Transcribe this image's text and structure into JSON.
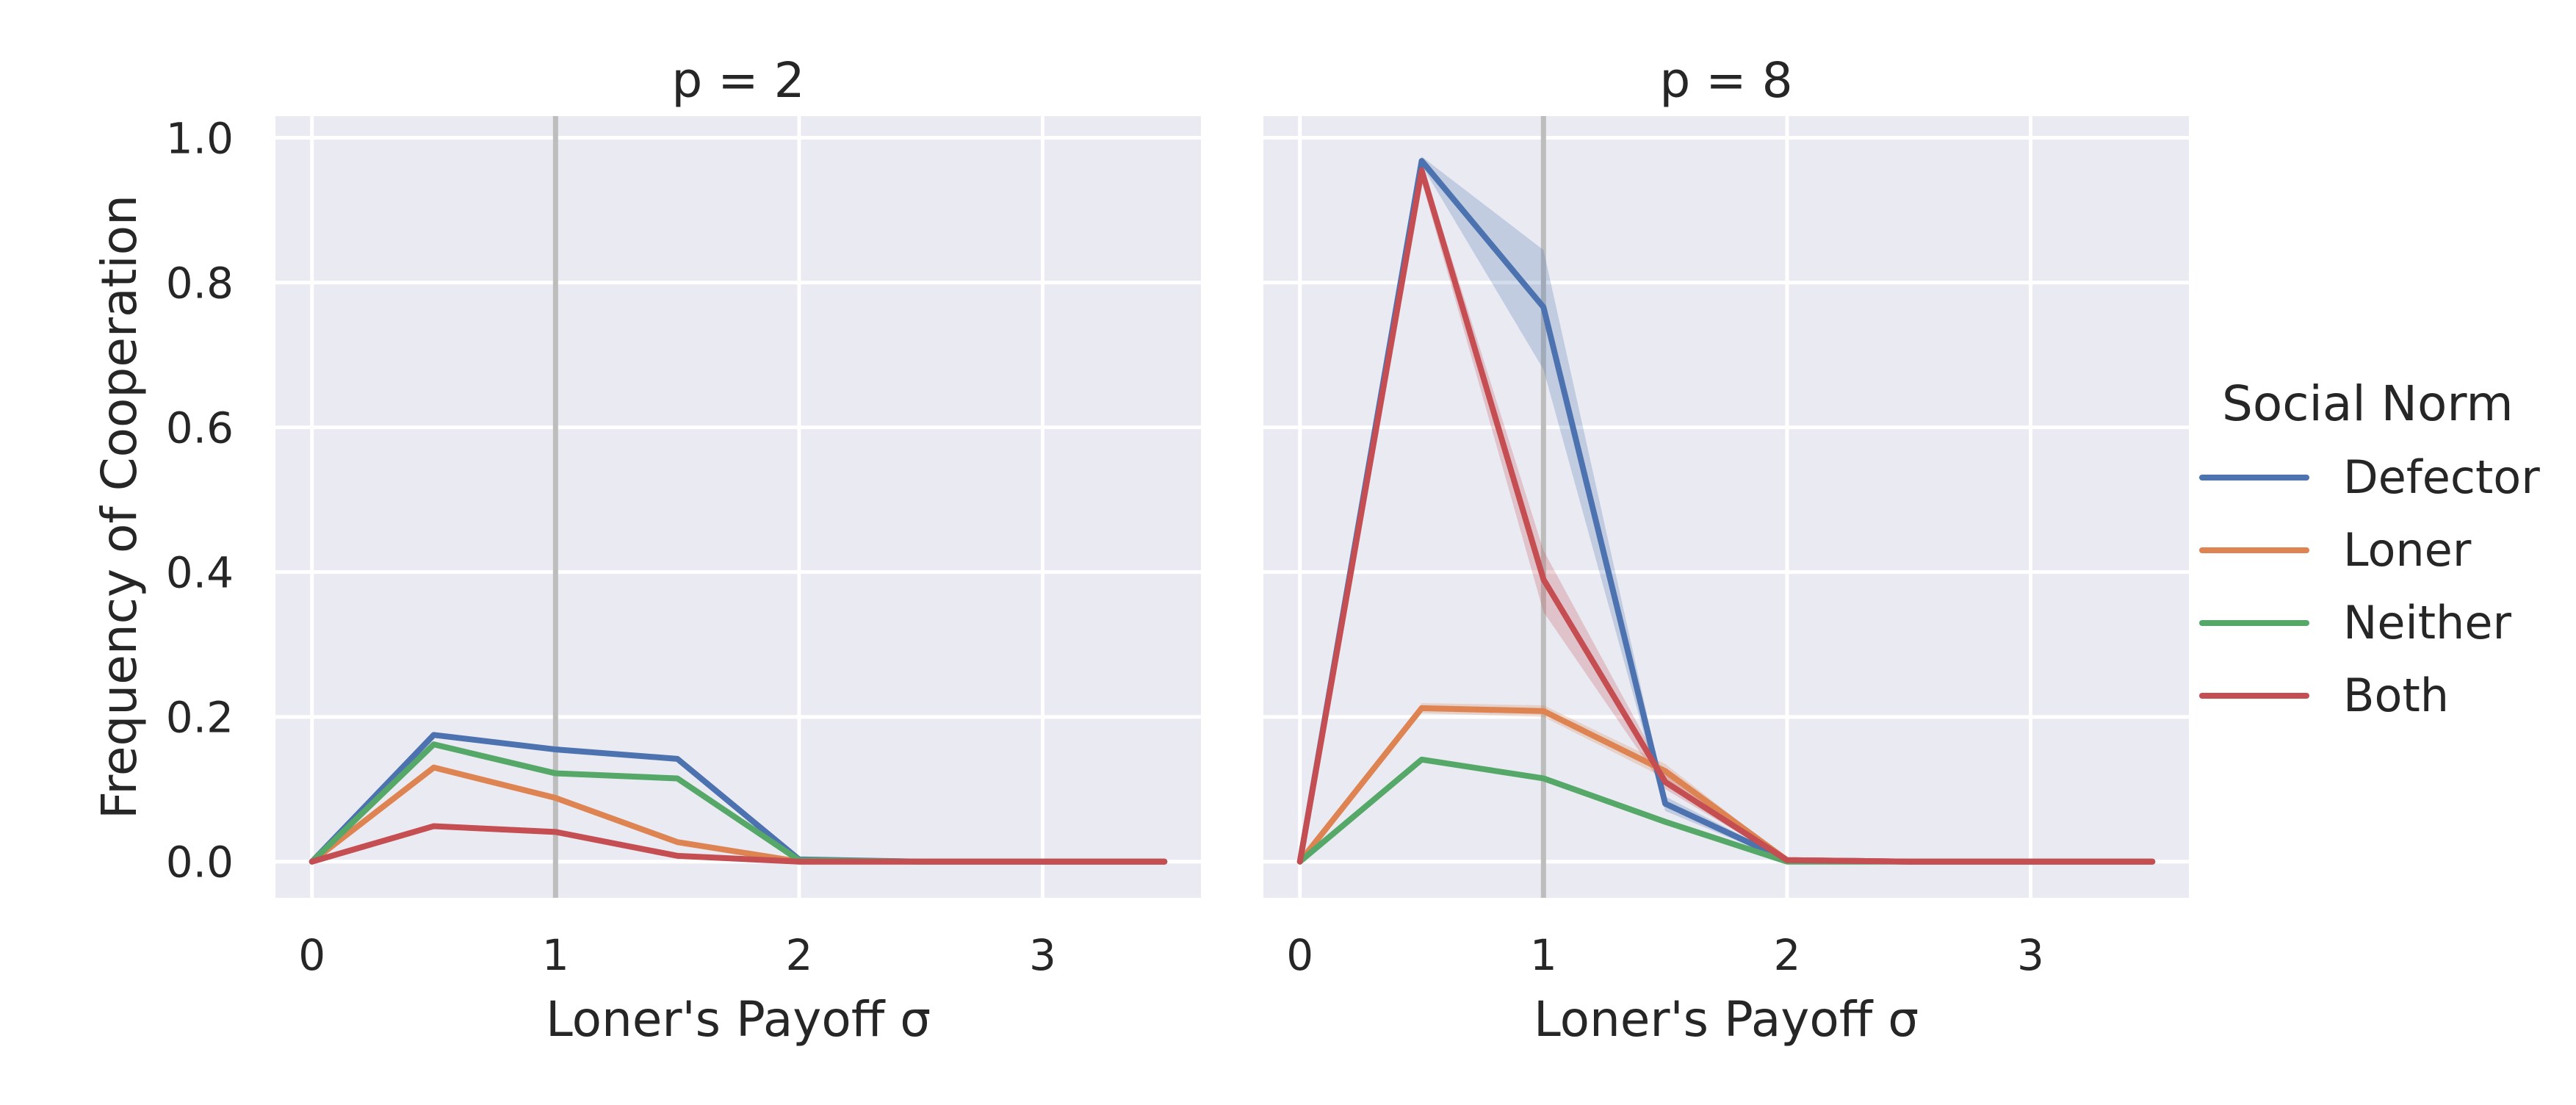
{
  "chart_data": {
    "type": "line",
    "ylabel": "Frequency of Cooperation",
    "legend": {
      "title": "Social Norm",
      "placement": "right",
      "entries": [
        "Defector",
        "Loner",
        "Neither",
        "Both"
      ]
    },
    "colors": {
      "Defector": "#4c72b0",
      "Loner": "#dd8452",
      "Neither": "#55a868",
      "Both": "#c44e52",
      "background": "#eaeaf2",
      "grid": "#ffffff",
      "reference_line": "#bdbdbd"
    },
    "grid": true,
    "reference_line_x": 1,
    "xlim": [
      -0.15,
      3.65
    ],
    "ylim": [
      -0.05,
      1.03
    ],
    "xticks": [
      0,
      1,
      2,
      3
    ],
    "yticks": [
      0.0,
      0.2,
      0.4,
      0.6,
      0.8,
      1.0
    ],
    "ytick_labels": [
      "0.0",
      "0.2",
      "0.4",
      "0.6",
      "0.8",
      "1.0"
    ],
    "panels": [
      {
        "title": "p = 2",
        "xlabel": "Loner's Payoff σ",
        "x": [
          0,
          0.5,
          1.0,
          1.5,
          2.0,
          2.5,
          3.0,
          3.5
        ],
        "series": [
          {
            "name": "Defector",
            "values": [
              0.0,
              0.175,
              0.155,
              0.142,
              0.003,
              0.0,
              0.0,
              0.0
            ],
            "lower": null,
            "upper": null
          },
          {
            "name": "Loner",
            "values": [
              0.0,
              0.13,
              0.088,
              0.027,
              0.0,
              0.0,
              0.0,
              0.0
            ],
            "lower": null,
            "upper": null
          },
          {
            "name": "Neither",
            "values": [
              0.0,
              0.162,
              0.122,
              0.115,
              0.002,
              0.0,
              0.0,
              0.0
            ],
            "lower": null,
            "upper": null
          },
          {
            "name": "Both",
            "values": [
              0.0,
              0.049,
              0.041,
              0.008,
              0.0,
              0.0,
              0.0,
              0.0
            ],
            "lower": null,
            "upper": null
          }
        ]
      },
      {
        "title": "p = 8",
        "xlabel": "Loner's Payoff σ",
        "x": [
          0,
          0.5,
          1.0,
          1.5,
          2.0,
          2.5,
          3.0,
          3.5
        ],
        "series": [
          {
            "name": "Defector",
            "values": [
              0.0,
              0.968,
              0.766,
              0.08,
              0.002,
              0.0,
              0.0,
              0.0
            ],
            "lower": [
              0.0,
              0.962,
              0.68,
              0.07,
              0.0,
              0.0,
              0.0,
              0.0
            ],
            "upper": [
              0.0,
              0.974,
              0.845,
              0.09,
              0.004,
              0.0,
              0.0,
              0.0
            ]
          },
          {
            "name": "Loner",
            "values": [
              0.0,
              0.212,
              0.208,
              0.125,
              0.002,
              0.0,
              0.0,
              0.0
            ],
            "lower": [
              0.0,
              0.205,
              0.2,
              0.115,
              0.0,
              0.0,
              0.0,
              0.0
            ],
            "upper": [
              0.0,
              0.219,
              0.216,
              0.135,
              0.004,
              0.0,
              0.0,
              0.0
            ]
          },
          {
            "name": "Neither",
            "values": [
              0.0,
              0.141,
              0.115,
              0.055,
              0.0,
              0.0,
              0.0,
              0.0
            ],
            "lower": null,
            "upper": null
          },
          {
            "name": "Both",
            "values": [
              0.0,
              0.955,
              0.39,
              0.11,
              0.002,
              0.0,
              0.0,
              0.0
            ],
            "lower": [
              0.0,
              0.94,
              0.345,
              0.1,
              0.0,
              0.0,
              0.0,
              0.0
            ],
            "upper": [
              0.0,
              0.965,
              0.43,
              0.12,
              0.004,
              0.0,
              0.0,
              0.0
            ]
          }
        ]
      }
    ]
  }
}
